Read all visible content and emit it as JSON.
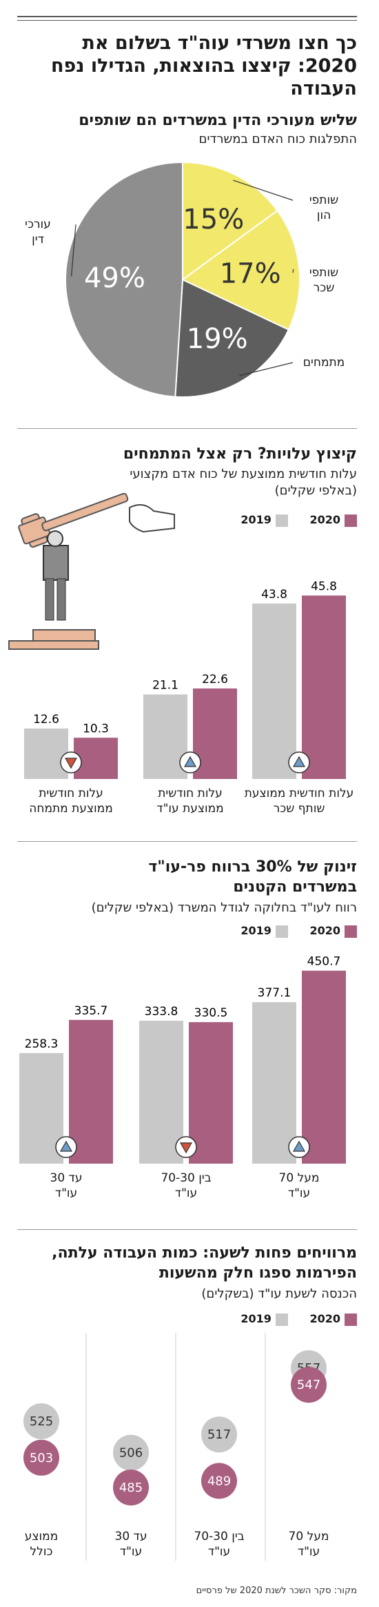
{
  "colors": {
    "c2020": "#a85f80",
    "c2019": "#c8c8c8",
    "yellow": "#f2e86c",
    "darkgray": "#5e5e5e",
    "gray": "#8e8e8e"
  },
  "title": "כך חצו משרדי עוה\"ד בשלום את 2020: קיצצו בהוצאות, הגדילו נפח העבודה",
  "legend": {
    "y2020": "2020",
    "y2019": "2019"
  },
  "source": "מקור: סקר השכר לשנת 2020 של פרסיים",
  "chart_data": [
    {
      "type": "pie",
      "title": "שליש מעורכי הדין במשרדים הם שותפים",
      "subtitle": "התפלגות כוח האדם במשרדים",
      "slices": [
        {
          "label": "שותפי הון",
          "value": 15,
          "display": "15%",
          "color": "#f2e86c"
        },
        {
          "label": "שותפי שכר",
          "value": 17,
          "display": "17%",
          "color": "#f2e86c"
        },
        {
          "label": "מתמחים",
          "value": 19,
          "display": "19%",
          "color": "#5e5e5e"
        },
        {
          "label": "עורכי דין",
          "value": 49,
          "display": "49%",
          "color": "#8e8e8e"
        }
      ]
    },
    {
      "type": "bar",
      "title": "קיצוץ עלויות? רק אצל המתמחים",
      "subtitle": "עלות חודשית ממוצעת של כוח אדם מקצועי (באלפי שקלים)",
      "categories": [
        "עלות חודשית ממוצעת שותף שכר",
        "עלות חודשית ממוצעת עו\"ד",
        "עלות חודשית ממוצעת מתמחה"
      ],
      "series": [
        {
          "name": "2020",
          "values": [
            45.8,
            22.6,
            10.3
          ]
        },
        {
          "name": "2019",
          "values": [
            43.8,
            21.1,
            12.6
          ]
        }
      ],
      "trend": [
        "up",
        "up",
        "down"
      ],
      "ylim": [
        0,
        50
      ]
    },
    {
      "type": "bar",
      "title": "זינוק של 30% ברווח פר-עו\"ד במשרדים הקטנים",
      "subtitle": "רווח לעו\"ד בחלוקה לגודל המשרד (באלפי שקלים)",
      "categories": [
        "מעל 70 עו\"ד",
        "בין 70-30 עו\"ד",
        "עד 30 עו\"ד"
      ],
      "series": [
        {
          "name": "2020",
          "values": [
            450.7,
            330.5,
            335.7
          ]
        },
        {
          "name": "2019",
          "values": [
            377.1,
            333.8,
            258.3
          ]
        }
      ],
      "trend": [
        "up",
        "down",
        "up"
      ],
      "ylim": [
        0,
        500
      ]
    },
    {
      "type": "scatter",
      "title": "מרוויחים פחות לשעה: כמות העבודה עלתה, הפירמות ספגו חלק מהשעות",
      "subtitle": "הכנסה לשעת עו\"ד (בשקלים)",
      "categories": [
        "מעל 70 עו\"ד",
        "בין 70-30 עו\"ד",
        "עד 30 עו\"ד",
        "ממוצע כולל"
      ],
      "series": [
        {
          "name": "2020",
          "values": [
            547,
            489,
            485,
            503
          ]
        },
        {
          "name": "2019",
          "values": [
            557,
            517,
            506,
            525
          ]
        }
      ],
      "ylim": [
        470,
        570
      ]
    }
  ]
}
